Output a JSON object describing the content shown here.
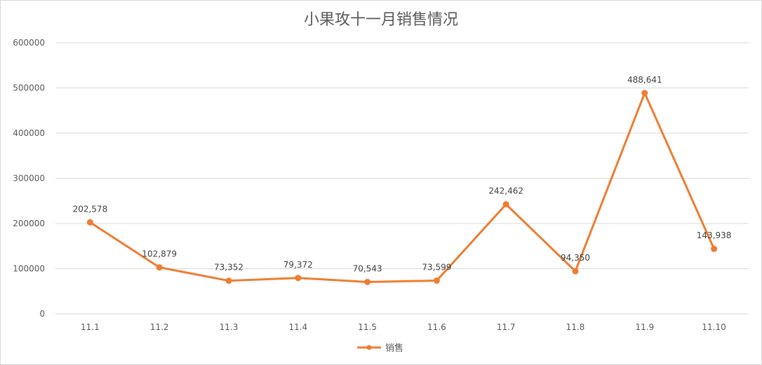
{
  "chart_data": {
    "type": "line",
    "title": "小果攻十一月销售情况",
    "xlabel": "",
    "ylabel": "",
    "categories": [
      "11.1",
      "11.2",
      "11.3",
      "11.4",
      "11.5",
      "11.6",
      "11.7",
      "11.8",
      "11.9",
      "11.10"
    ],
    "series": [
      {
        "name": "销售",
        "values": [
          202578,
          102879,
          73352,
          79372,
          70543,
          73599,
          242462,
          94350,
          488641,
          143938
        ],
        "labels": [
          "202,578",
          "102,879",
          "73,352",
          "79,372",
          "70,543",
          "73,599",
          "242,462",
          "94,350",
          "488,641",
          "143,938"
        ],
        "color": "#ED7D31"
      }
    ],
    "ylim": [
      0,
      600000
    ],
    "yticks": [
      "0",
      "100000",
      "200000",
      "300000",
      "400000",
      "500000",
      "600000"
    ],
    "grid": true,
    "legend_position": "bottom"
  }
}
